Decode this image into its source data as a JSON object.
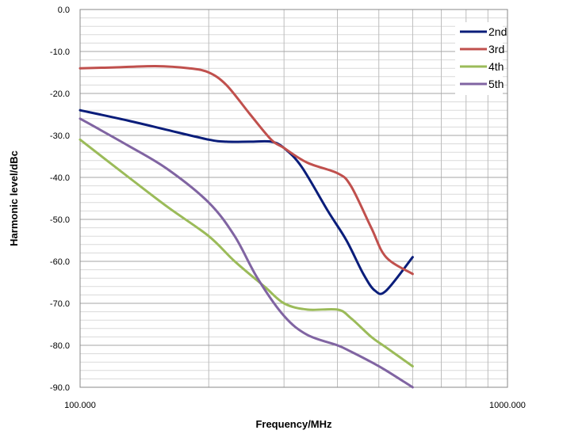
{
  "chart_data": {
    "type": "line",
    "title": "",
    "xlabel": "Frequency/MHz",
    "ylabel": "Harmonic level/dBc",
    "x_scale": "log",
    "xlim": [
      100,
      1000
    ],
    "ylim": [
      -90,
      0
    ],
    "x_tick_labels": [
      "100.000",
      "1000.000"
    ],
    "y_ticks": [
      0,
      -10,
      -20,
      -30,
      -40,
      -50,
      -60,
      -70,
      -80,
      -90
    ],
    "y_tick_labels": [
      "0.0",
      "-10.0",
      "-20.0",
      "-30.0",
      "-40.0",
      "-50.0",
      "-60.0",
      "-70.0",
      "-80.0",
      "-90.0"
    ],
    "grid": true,
    "legend_position": "top-right",
    "series": [
      {
        "name": "2nd",
        "color": "#0a1d7a",
        "x": [
          100,
          130,
          160,
          200,
          220,
          250,
          280,
          300,
          330,
          380,
          420,
          460,
          490,
          520,
          600
        ],
        "y": [
          -24,
          -26.5,
          -28.7,
          -31,
          -31.5,
          -31.5,
          -31.5,
          -33,
          -37.5,
          -48,
          -55,
          -63,
          -67,
          -67,
          -59
        ]
      },
      {
        "name": "3rd",
        "color": "#c0504d",
        "x": [
          100,
          120,
          150,
          180,
          200,
          220,
          250,
          280,
          300,
          340,
          400,
          430,
          480,
          520,
          600
        ],
        "y": [
          -14,
          -13.8,
          -13.5,
          -14,
          -15,
          -18,
          -25,
          -31,
          -33,
          -36.5,
          -39,
          -42,
          -52,
          -59,
          -63
        ]
      },
      {
        "name": "4th",
        "color": "#9bbb59",
        "x": [
          100,
          130,
          160,
          200,
          230,
          270,
          300,
          340,
          400,
          430,
          480,
          520,
          600
        ],
        "y": [
          -31,
          -40,
          -47,
          -54,
          -60,
          -66,
          -70,
          -71.5,
          -71.5,
          -73.5,
          -78,
          -80.5,
          -85
        ]
      },
      {
        "name": "5th",
        "color": "#8064a2",
        "x": [
          100,
          130,
          160,
          200,
          230,
          260,
          300,
          340,
          400,
          430,
          480,
          520,
          600
        ],
        "y": [
          -26,
          -32.5,
          -38,
          -46,
          -54,
          -64,
          -73,
          -77.5,
          -80,
          -81.5,
          -84,
          -86,
          -90
        ]
      }
    ]
  }
}
